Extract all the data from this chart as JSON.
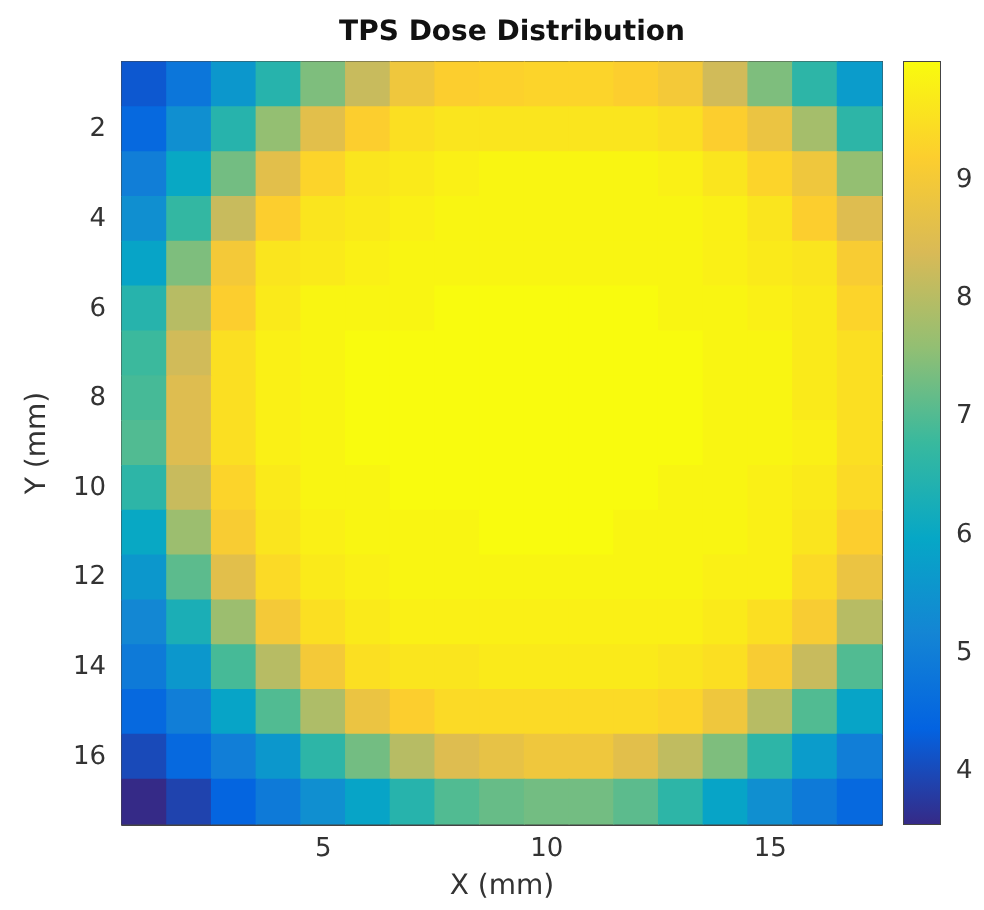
{
  "chart_data": {
    "type": "heatmap",
    "title": "TPS Dose Distribution",
    "xlabel": "X (mm)",
    "ylabel": "Y (mm)",
    "categories": [
      null,
      null,
      null,
      null,
      "5",
      null,
      null,
      null,
      null,
      "10",
      null,
      null,
      null,
      null,
      "15",
      null,
      null
    ],
    "y_categories": [
      null,
      "2",
      null,
      "4",
      null,
      "6",
      null,
      "8",
      null,
      "10",
      null,
      "12",
      null,
      "14",
      null,
      "16",
      null
    ],
    "cells": [
      [
        4.2,
        4.8,
        5.6,
        6.5,
        7.4,
        8.2,
        8.9,
        9.2,
        9.25,
        9.3,
        9.3,
        9.2,
        9.0,
        8.3,
        7.4,
        6.6,
        5.7
      ],
      [
        4.5,
        5.4,
        6.5,
        7.6,
        8.6,
        9.2,
        9.5,
        9.6,
        9.6,
        9.6,
        9.6,
        9.6,
        9.5,
        9.2,
        8.8,
        7.8,
        6.6
      ],
      [
        5.0,
        6.0,
        7.3,
        8.6,
        9.3,
        9.6,
        9.7,
        9.8,
        9.9,
        9.9,
        9.9,
        9.9,
        9.8,
        9.6,
        9.3,
        8.9,
        7.6
      ],
      [
        5.4,
        6.7,
        8.2,
        9.2,
        9.6,
        9.7,
        9.8,
        9.9,
        9.9,
        9.9,
        9.9,
        9.9,
        9.9,
        9.8,
        9.6,
        9.2,
        8.5
      ],
      [
        5.9,
        7.4,
        9.0,
        9.6,
        9.7,
        9.8,
        9.9,
        9.9,
        9.9,
        9.9,
        9.9,
        9.9,
        9.9,
        9.8,
        9.7,
        9.6,
        9.1
      ],
      [
        6.5,
        8.0,
        9.2,
        9.7,
        9.9,
        9.9,
        9.9,
        10,
        10,
        10,
        10,
        10,
        9.9,
        9.9,
        9.8,
        9.7,
        9.3
      ],
      [
        6.8,
        8.3,
        9.5,
        9.8,
        9.9,
        10,
        10,
        10,
        10,
        10,
        10,
        10,
        10,
        9.9,
        9.9,
        9.7,
        9.5
      ],
      [
        6.9,
        8.5,
        9.5,
        9.8,
        9.9,
        10,
        10,
        10,
        10,
        10,
        10,
        10,
        10,
        9.9,
        9.9,
        9.7,
        9.5
      ],
      [
        7.0,
        8.5,
        9.5,
        9.8,
        9.9,
        10,
        10,
        10,
        10,
        10,
        10,
        10,
        10,
        9.9,
        9.9,
        9.8,
        9.5
      ],
      [
        6.6,
        8.2,
        9.3,
        9.7,
        9.9,
        9.9,
        10,
        10,
        10,
        10,
        10,
        10,
        9.9,
        9.9,
        9.8,
        9.7,
        9.4
      ],
      [
        6.0,
        7.7,
        9.1,
        9.6,
        9.8,
        9.9,
        9.9,
        9.9,
        10,
        10,
        10,
        9.9,
        9.9,
        9.9,
        9.8,
        9.6,
        9.2
      ],
      [
        5.6,
        7.1,
        8.6,
        9.4,
        9.7,
        9.8,
        9.9,
        9.9,
        9.9,
        9.9,
        9.9,
        9.9,
        9.9,
        9.8,
        9.8,
        9.4,
        8.8
      ],
      [
        5.2,
        6.3,
        7.7,
        9.0,
        9.5,
        9.7,
        9.8,
        9.8,
        9.8,
        9.8,
        9.8,
        9.8,
        9.8,
        9.7,
        9.5,
        9.1,
        8.0
      ],
      [
        4.9,
        5.6,
        6.9,
        8.0,
        9.0,
        9.5,
        9.6,
        9.6,
        9.7,
        9.7,
        9.7,
        9.7,
        9.6,
        9.5,
        9.1,
        8.2,
        7.0
      ],
      [
        4.5,
        5.0,
        5.9,
        7.0,
        7.9,
        8.8,
        9.2,
        9.4,
        9.4,
        9.4,
        9.4,
        9.4,
        9.3,
        8.9,
        8.0,
        7.0,
        5.9
      ],
      [
        4.0,
        4.5,
        5.0,
        5.6,
        6.6,
        7.3,
        8.0,
        8.5,
        8.7,
        8.9,
        8.9,
        8.6,
        8.1,
        7.4,
        6.6,
        5.7,
        5.0
      ],
      [
        3.55,
        3.9,
        4.4,
        4.9,
        5.4,
        5.9,
        6.5,
        7.0,
        7.2,
        7.3,
        7.3,
        7.1,
        6.6,
        5.9,
        5.4,
        4.9,
        4.5
      ]
    ],
    "clim": [
      3.55,
      10
    ],
    "cticks": [
      4,
      5,
      6,
      7,
      8,
      9
    ]
  }
}
